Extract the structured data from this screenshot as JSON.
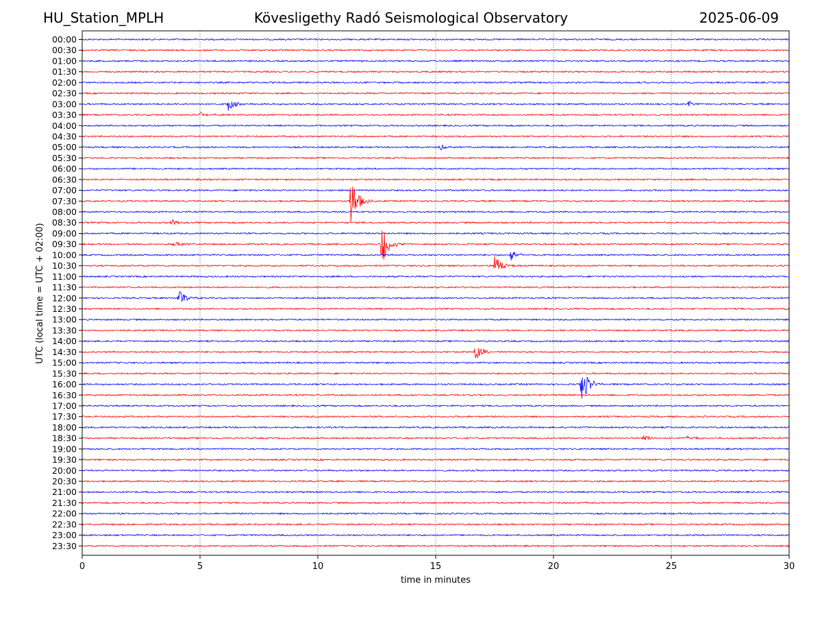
{
  "header": {
    "station": "HU_Station_MPLH",
    "observatory": "Kövesligethy Radó Seismological Observatory",
    "date": "2025-06-09"
  },
  "chart_data": {
    "type": "line",
    "title": "Kövesligethy Radó Seismological Observatory",
    "xlabel": "time in minutes",
    "ylabel": "UTC (local time = UTC + 02:00)",
    "xlim": [
      0,
      30
    ],
    "x_ticks": [
      0,
      5,
      10,
      15,
      20,
      25,
      30
    ],
    "grid": "vertical dotted lines at 5-minute ticks",
    "trace_colors": [
      "#0000ff",
      "#ff0000"
    ],
    "rows": [
      "00:00",
      "00:30",
      "01:00",
      "01:30",
      "02:00",
      "02:30",
      "03:00",
      "03:30",
      "04:00",
      "04:30",
      "05:00",
      "05:30",
      "06:00",
      "06:30",
      "07:00",
      "07:30",
      "08:00",
      "08:30",
      "09:00",
      "09:30",
      "10:00",
      "10:30",
      "11:00",
      "11:30",
      "12:00",
      "12:30",
      "13:00",
      "13:30",
      "14:00",
      "14:30",
      "15:00",
      "15:30",
      "16:00",
      "16:30",
      "17:00",
      "17:30",
      "18:00",
      "18:30",
      "19:00",
      "19:30",
      "20:00",
      "20:30",
      "21:00",
      "21:30",
      "22:00",
      "22:30",
      "23:00",
      "23:30"
    ],
    "events": [
      {
        "row": "03:00",
        "minute": 6.2,
        "amplitude": 0.6
      },
      {
        "row": "03:00",
        "minute": 25.7,
        "amplitude": 0.3
      },
      {
        "row": "03:30",
        "minute": 5.0,
        "amplitude": 0.3
      },
      {
        "row": "05:00",
        "minute": 15.2,
        "amplitude": 0.3
      },
      {
        "row": "07:30",
        "minute": 11.4,
        "amplitude": 2.6
      },
      {
        "row": "08:30",
        "minute": 3.8,
        "amplitude": 0.4
      },
      {
        "row": "09:30",
        "minute": 12.7,
        "amplitude": 2.3
      },
      {
        "row": "09:30",
        "minute": 3.9,
        "amplitude": 0.35
      },
      {
        "row": "10:00",
        "minute": 18.2,
        "amplitude": 0.6
      },
      {
        "row": "10:30",
        "minute": 17.5,
        "amplitude": 1.2
      },
      {
        "row": "12:00",
        "minute": 4.1,
        "amplitude": 0.8
      },
      {
        "row": "14:30",
        "minute": 16.7,
        "amplitude": 0.9
      },
      {
        "row": "16:00",
        "minute": 21.2,
        "amplitude": 2.0
      },
      {
        "row": "18:30",
        "minute": 23.8,
        "amplitude": 0.4
      },
      {
        "row": "18:30",
        "minute": 25.7,
        "amplitude": 0.3
      }
    ]
  }
}
